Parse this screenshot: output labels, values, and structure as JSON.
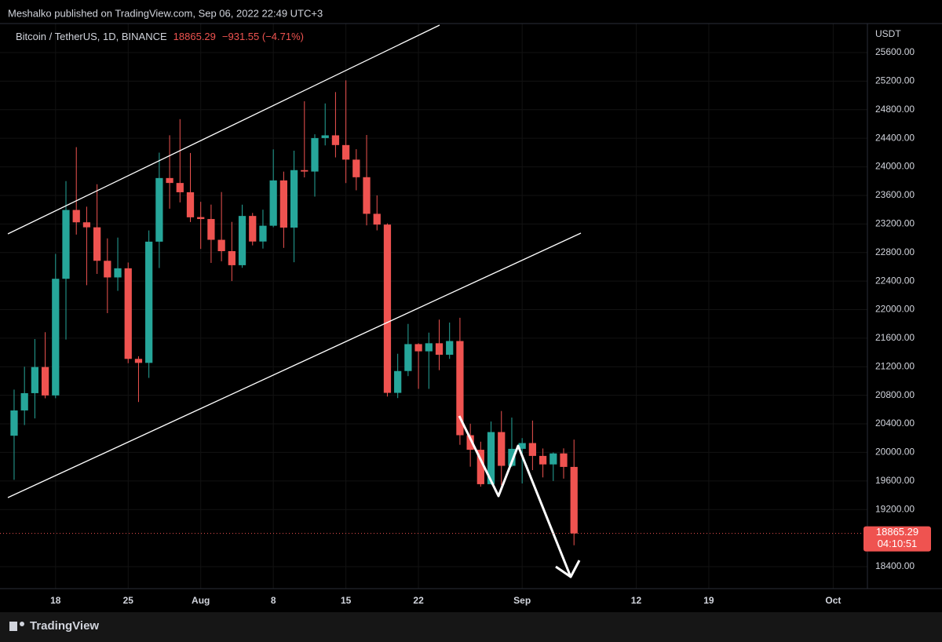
{
  "publisher_line": "Meshalko published on TradingView.com, Sep 06, 2022 22:49 UTC+3",
  "footer": "TradingView",
  "chart_data": {
    "type": "candlestick",
    "symbol": "Bitcoin / TetherUS, 1D, BINANCE",
    "last_price_label": "18865.29",
    "change_label": "−931.55 (−4.71%)",
    "countdown": "04:10:51",
    "currency": "USDT",
    "up_color": "#26a69a",
    "down_color": "#ef5350",
    "open": [
      20234,
      20588,
      20830,
      21196,
      20798,
      22432,
      23396,
      23223,
      23153,
      22684,
      22451,
      22579,
      21310,
      21254,
      22952,
      23843,
      23774,
      23644,
      23296,
      23269,
      22978,
      22819,
      22622,
      23312,
      22954,
      23175,
      23810,
      23149,
      23954,
      23934,
      24403,
      24441,
      24305,
      24101,
      23855,
      23342,
      23191,
      20834,
      21140,
      21517,
      21416,
      21529,
      21368,
      21560,
      20241,
      20037,
      19555,
      20285,
      19812,
      20050,
      20131,
      19951,
      19832,
      19986,
      19796.84
    ],
    "high": [
      20880,
      21200,
      21588,
      21684,
      22780,
      23800,
      24276,
      23442,
      23756,
      22998,
      23009,
      22659,
      21347,
      23109,
      24199,
      24442,
      24668,
      24194,
      23510,
      23471,
      23647,
      23229,
      23470,
      23354,
      23400,
      24245,
      23933,
      24226,
      24918,
      24456,
      24888,
      25047,
      25211,
      24247,
      24446,
      23600,
      23208,
      21382,
      21800,
      21529,
      21678,
      21860,
      21819,
      21886,
      20402,
      20150,
      20433,
      20580,
      20488,
      20200,
      20446,
      20055,
      20000,
      20057,
      20179
    ],
    "low": [
      19616,
      20383,
      20476,
      20758,
      20759,
      21581,
      23051,
      22342,
      22500,
      21951,
      22263,
      21250,
      20706,
      21043,
      22582,
      23414,
      23502,
      23227,
      22850,
      22654,
      22677,
      22400,
      22586,
      22900,
      22855,
      23154,
      22865,
      22664,
      23852,
      23583,
      24300,
      24132,
      23773,
      23671,
      23180,
      23110,
      20783,
      20761,
      21069,
      20890,
      20890,
      21152,
      21310,
      20107,
      19800,
      19520,
      19550,
      19540,
      19797,
      19565,
      19752,
      19650,
      19600,
      19633,
      18700
    ],
    "close": [
      20588,
      20830,
      21196,
      20798,
      22432,
      23396,
      23223,
      23153,
      22684,
      22451,
      22579,
      21310,
      21254,
      22952,
      23843,
      23774,
      23644,
      23293,
      23269,
      22978,
      22819,
      22622,
      23312,
      22954,
      23175,
      23810,
      23149,
      23954,
      23934,
      24403,
      24441,
      24305,
      24101,
      23854,
      23342,
      23191,
      20834,
      21140,
      21517,
      21416,
      21529,
      21368,
      21560,
      20241,
      20037,
      19555,
      20285,
      19812,
      20050,
      20131,
      19951,
      19832,
      19986,
      19796.84,
      18865.29
    ],
    "xlim": [
      -1.36,
      82.3
    ],
    "xticks": [
      {
        "value": 4,
        "label": "18"
      },
      {
        "value": 11,
        "label": "25"
      },
      {
        "value": 18,
        "label": "Aug"
      },
      {
        "value": 25,
        "label": "8"
      },
      {
        "value": 32,
        "label": "15"
      },
      {
        "value": 39,
        "label": "22"
      },
      {
        "value": 49,
        "label": "Sep"
      },
      {
        "value": 60,
        "label": "12"
      },
      {
        "value": 67,
        "label": "19"
      },
      {
        "value": 79,
        "label": "Oct"
      }
    ],
    "ylim": [
      18092,
      26007
    ],
    "yticks": [
      {
        "value": 18400,
        "label": "18400.00"
      },
      {
        "value": 19200,
        "label": "19200.00"
      },
      {
        "value": 19600,
        "label": "19600.00"
      },
      {
        "value": 20000,
        "label": "20000.00"
      },
      {
        "value": 20400,
        "label": "20400.00"
      },
      {
        "value": 20800,
        "label": "20800.00"
      },
      {
        "value": 21200,
        "label": "21200.00"
      },
      {
        "value": 21600,
        "label": "21600.00"
      },
      {
        "value": 22000,
        "label": "22000.00"
      },
      {
        "value": 22400,
        "label": "22400.00"
      },
      {
        "value": 22800,
        "label": "22800.00"
      },
      {
        "value": 23200,
        "label": "23200.00"
      },
      {
        "value": 23600,
        "label": "23600.00"
      },
      {
        "value": 24000,
        "label": "24000.00"
      },
      {
        "value": 24400,
        "label": "24400.00"
      },
      {
        "value": 24800,
        "label": "24800.00"
      },
      {
        "value": 25200,
        "label": "25200.00"
      },
      {
        "value": 25600,
        "label": "25600.00"
      }
    ],
    "grid": true
  }
}
